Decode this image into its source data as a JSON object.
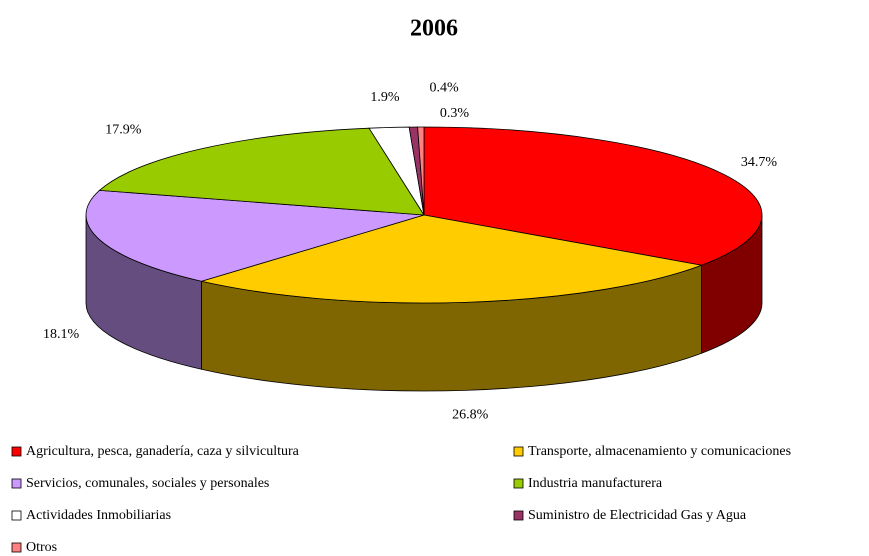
{
  "chart_data": {
    "type": "pie",
    "title": "2006",
    "categories": [
      "Agricultura, pesca, ganadería, caza y silvicultura",
      "Transporte, almacenamiento y comunicaciones",
      "Servicios, comunales, sociales y personales",
      "Industria manufacturera",
      "Actividades Inmobiliarias",
      "Suministro de Electricidad Gas y Agua",
      "Otros"
    ],
    "values": [
      34.7,
      26.8,
      18.1,
      17.9,
      1.9,
      0.4,
      0.3
    ],
    "value_labels": [
      "34.7%",
      "26.8%",
      "18.1%",
      "17.9%",
      "1.9%",
      "0.4%",
      "0.3%"
    ],
    "colors": [
      "#ff0000",
      "#ffcc00",
      "#cc99ff",
      "#99cc00",
      "#ffffff",
      "#993366",
      "#ff8080"
    ],
    "legend": "bottom"
  }
}
